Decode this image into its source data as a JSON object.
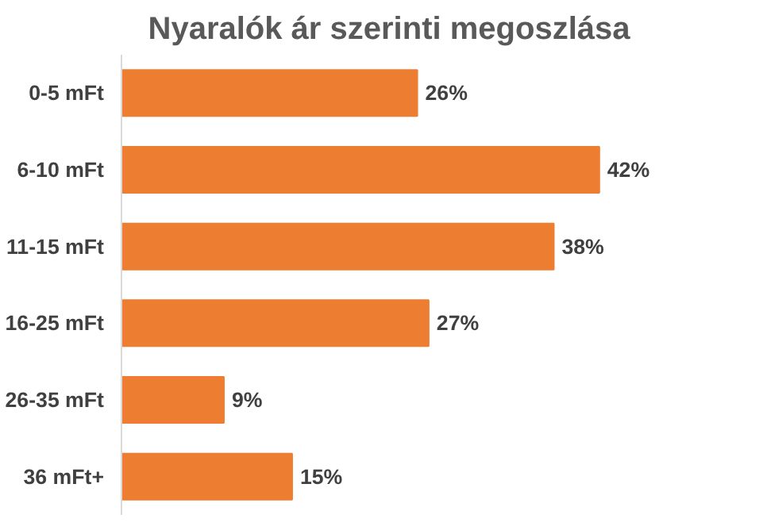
{
  "chart_data": {
    "type": "bar",
    "orientation": "horizontal",
    "title": "Nyaralók ár szerinti megoszlása",
    "categories": [
      "0-5 mFt",
      "6-10 mFt",
      "11-15 mFt",
      "16-25 mFt",
      "26-35 mFt",
      "36 mFt+"
    ],
    "values": [
      26,
      42,
      38,
      27,
      9,
      15
    ],
    "value_labels": [
      "26%",
      "42%",
      "38%",
      "27%",
      "9%",
      "15%"
    ],
    "color": "#ed7d31",
    "grid": false
  }
}
